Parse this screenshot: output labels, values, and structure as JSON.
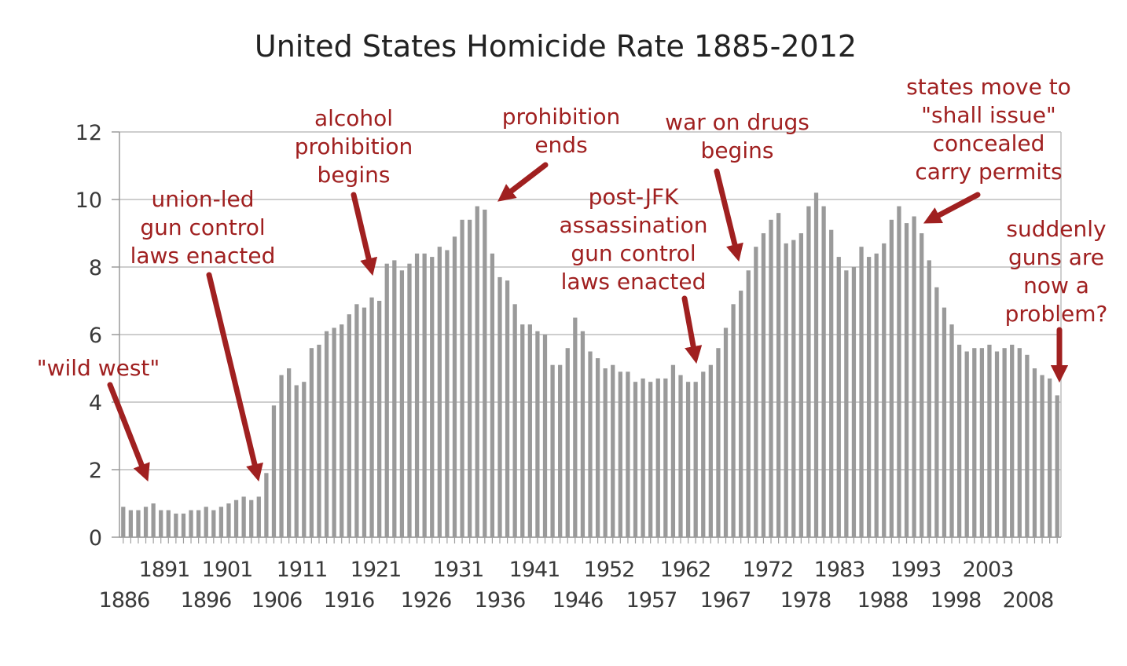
{
  "chart_data": {
    "type": "bar",
    "title": "United States Homicide Rate 1885-2012",
    "xlabel": "",
    "ylabel": "",
    "ylim": [
      0,
      12
    ],
    "y_ticks": [
      "0",
      "2",
      "4",
      "6",
      "8",
      "10",
      "12"
    ],
    "grid": true,
    "x_tick_labels_row1": [
      "1891",
      "1901",
      "1911",
      "1921",
      "1931",
      "1941",
      "1952",
      "1962",
      "1972",
      "1983",
      "1993",
      "2003"
    ],
    "x_tick_labels_row2": [
      "1886",
      "1896",
      "1906",
      "1916",
      "1926",
      "1936",
      "1946",
      "1957",
      "1967",
      "1978",
      "1988",
      "1998",
      "2008"
    ],
    "bar_color": "#9a9a9a",
    "annotation_color": "#a02020",
    "values": [
      0.9,
      0.8,
      0.8,
      0.9,
      1.0,
      0.8,
      0.8,
      0.7,
      0.7,
      0.8,
      0.8,
      0.9,
      0.8,
      0.9,
      1.0,
      1.1,
      1.2,
      1.1,
      1.2,
      1.9,
      3.9,
      4.8,
      5.0,
      4.5,
      4.6,
      5.6,
      5.7,
      6.1,
      6.2,
      6.3,
      6.6,
      6.9,
      6.8,
      7.1,
      7.0,
      8.1,
      8.2,
      7.9,
      8.1,
      8.4,
      8.4,
      8.3,
      8.6,
      8.5,
      8.9,
      9.4,
      9.4,
      9.8,
      9.7,
      8.4,
      7.7,
      7.6,
      6.9,
      6.3,
      6.3,
      6.1,
      6.0,
      5.1,
      5.1,
      5.6,
      6.5,
      6.1,
      5.5,
      5.3,
      5.0,
      5.1,
      4.9,
      4.9,
      4.6,
      4.7,
      4.6,
      4.7,
      4.7,
      5.1,
      4.8,
      4.6,
      4.6,
      4.9,
      5.1,
      5.6,
      6.2,
      6.9,
      7.3,
      7.9,
      8.6,
      9.0,
      9.4,
      9.6,
      8.7,
      8.8,
      9.0,
      9.8,
      10.2,
      9.8,
      9.1,
      8.3,
      7.9,
      8.0,
      8.6,
      8.3,
      8.4,
      8.7,
      9.4,
      9.8,
      9.3,
      9.5,
      9.0,
      8.2,
      7.4,
      6.8,
      6.3,
      5.7,
      5.5,
      5.6,
      5.6,
      5.7,
      5.5,
      5.6,
      5.7,
      5.6,
      5.4,
      5.0,
      4.8,
      4.7,
      4.2
    ]
  },
  "annotations": {
    "wild_west": [
      "\"wild west\""
    ],
    "union_led": [
      "union-led",
      "gun control",
      "laws enacted"
    ],
    "alcohol_prohibition": [
      "alcohol",
      "prohibition",
      "begins"
    ],
    "prohibition_ends": [
      "prohibition",
      "ends"
    ],
    "war_on_drugs": [
      "war on drugs",
      "begins"
    ],
    "post_jfk": [
      "post-JFK",
      "assassination",
      "gun control",
      "laws enacted"
    ],
    "shall_issue": [
      "states move to",
      "\"shall issue\"",
      "concealed",
      "carry permits"
    ],
    "suddenly": [
      "suddenly",
      "guns are",
      "now a",
      "problem?"
    ]
  }
}
